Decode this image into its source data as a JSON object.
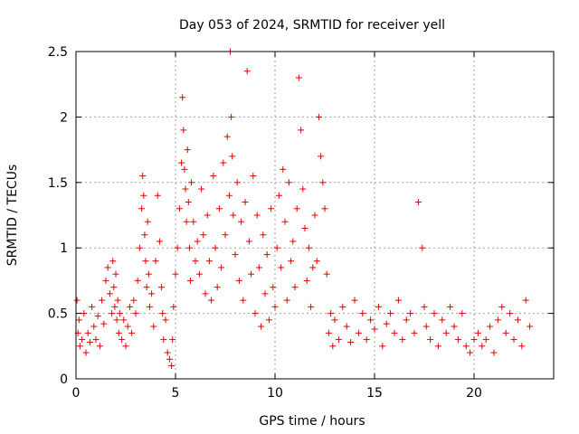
{
  "chart_data": {
    "type": "scatter",
    "title": "Day 053 of 2024, SRMTID for receiver yell",
    "xlabel": "GPS time / hours",
    "ylabel": "SRMTID / TECUs",
    "xlim": [
      0,
      24
    ],
    "ylim": [
      0,
      2.5
    ],
    "x_ticks": [
      0,
      5,
      10,
      15,
      20
    ],
    "x_tick_labels": [
      "0",
      "5",
      "10",
      "15",
      "20"
    ],
    "y_ticks": [
      0,
      0.5,
      1,
      1.5,
      2,
      2.5
    ],
    "y_tick_labels": [
      "0",
      "0.5",
      "1",
      "1.5",
      "2",
      "2.5"
    ],
    "grid": true,
    "marker": "+",
    "marker_color": "#e00000",
    "series": [
      {
        "name": "SRMTID",
        "x": [
          0.05,
          0.1,
          0.15,
          0.2,
          0.3,
          0.4,
          0.5,
          0.6,
          0.7,
          0.8,
          0.9,
          1.0,
          1.1,
          1.2,
          1.3,
          1.4,
          1.5,
          1.6,
          1.7,
          1.8,
          1.85,
          1.9,
          1.95,
          2.0,
          2.05,
          2.1,
          2.15,
          2.2,
          2.3,
          2.4,
          2.5,
          2.6,
          2.7,
          2.8,
          2.9,
          3.0,
          3.1,
          3.2,
          3.3,
          3.35,
          3.4,
          3.45,
          3.5,
          3.55,
          3.6,
          3.65,
          3.7,
          3.8,
          3.9,
          4.0,
          4.1,
          4.2,
          4.3,
          4.35,
          4.4,
          4.5,
          4.6,
          4.7,
          4.8,
          4.85,
          4.9,
          5.0,
          5.1,
          5.2,
          5.3,
          5.35,
          5.4,
          5.45,
          5.5,
          5.55,
          5.6,
          5.65,
          5.7,
          5.75,
          5.8,
          5.9,
          6.0,
          6.1,
          6.2,
          6.3,
          6.4,
          6.5,
          6.6,
          6.7,
          6.8,
          6.9,
          7.0,
          7.1,
          7.2,
          7.3,
          7.4,
          7.5,
          7.6,
          7.7,
          7.75,
          7.8,
          7.85,
          7.9,
          8.0,
          8.1,
          8.2,
          8.3,
          8.4,
          8.5,
          8.6,
          8.7,
          8.8,
          8.9,
          9.0,
          9.1,
          9.2,
          9.3,
          9.4,
          9.5,
          9.6,
          9.7,
          9.8,
          9.9,
          10.0,
          10.1,
          10.2,
          10.3,
          10.4,
          10.5,
          10.6,
          10.7,
          10.8,
          10.9,
          11.0,
          11.1,
          11.2,
          11.3,
          11.4,
          11.5,
          11.6,
          11.7,
          11.8,
          11.9,
          12.0,
          12.1,
          12.2,
          12.3,
          12.4,
          12.5,
          12.6,
          12.7,
          12.8,
          12.9,
          13.0,
          13.2,
          13.4,
          13.6,
          13.8,
          14.0,
          14.2,
          14.4,
          14.6,
          14.8,
          15.0,
          15.2,
          15.4,
          15.6,
          15.8,
          16.0,
          16.2,
          16.4,
          16.6,
          16.8,
          17.0,
          17.2,
          17.4,
          17.5,
          17.6,
          17.8,
          18.0,
          18.2,
          18.4,
          18.6,
          18.8,
          19.0,
          19.2,
          19.4,
          19.6,
          19.8,
          20.0,
          20.2,
          20.4,
          20.6,
          20.8,
          21.0,
          21.2,
          21.4,
          21.6,
          21.8,
          22.0,
          22.2,
          22.4,
          22.6,
          22.8
        ],
        "y": [
          0.6,
          0.35,
          0.45,
          0.25,
          0.3,
          0.5,
          0.2,
          0.35,
          0.28,
          0.55,
          0.4,
          0.3,
          0.48,
          0.25,
          0.6,
          0.42,
          0.75,
          0.85,
          0.65,
          0.5,
          0.9,
          0.7,
          0.55,
          0.8,
          0.45,
          0.6,
          0.35,
          0.5,
          0.3,
          0.45,
          0.25,
          0.4,
          0.55,
          0.35,
          0.6,
          0.5,
          0.75,
          1.0,
          1.3,
          1.55,
          1.4,
          1.1,
          0.9,
          0.7,
          1.2,
          0.8,
          0.55,
          0.65,
          0.4,
          0.9,
          1.4,
          1.05,
          0.7,
          0.5,
          0.3,
          0.45,
          0.2,
          0.15,
          0.1,
          0.3,
          0.55,
          0.8,
          1.0,
          1.3,
          1.65,
          2.15,
          1.9,
          1.6,
          1.45,
          1.2,
          1.75,
          1.35,
          1.0,
          0.75,
          1.5,
          1.2,
          0.9,
          1.05,
          0.8,
          1.45,
          1.1,
          0.65,
          1.25,
          0.9,
          0.6,
          1.55,
          1.0,
          0.7,
          1.3,
          0.85,
          1.65,
          1.1,
          1.85,
          1.4,
          2.5,
          2.0,
          1.7,
          1.25,
          0.95,
          1.5,
          0.75,
          1.2,
          0.6,
          1.35,
          2.35,
          1.05,
          0.8,
          1.55,
          0.5,
          1.25,
          0.85,
          0.4,
          1.1,
          0.65,
          0.95,
          0.45,
          1.3,
          0.7,
          0.55,
          1.0,
          1.4,
          0.85,
          1.6,
          1.2,
          0.6,
          1.5,
          0.9,
          1.05,
          0.7,
          1.3,
          2.3,
          1.9,
          1.45,
          1.15,
          0.75,
          1.0,
          0.55,
          0.85,
          1.25,
          0.9,
          2.0,
          1.7,
          1.5,
          1.3,
          0.8,
          0.35,
          0.5,
          0.25,
          0.45,
          0.3,
          0.55,
          0.4,
          0.28,
          0.6,
          0.35,
          0.5,
          0.3,
          0.45,
          0.38,
          0.55,
          0.25,
          0.42,
          0.5,
          0.35,
          0.6,
          0.3,
          0.45,
          0.5,
          0.35,
          1.35,
          1.0,
          0.55,
          0.4,
          0.3,
          0.5,
          0.25,
          0.45,
          0.35,
          0.55,
          0.4,
          0.3,
          0.5,
          0.25,
          0.2,
          0.3,
          0.35,
          0.25,
          0.3,
          0.4,
          0.2,
          0.45,
          0.55,
          0.35,
          0.5,
          0.3,
          0.45,
          0.25,
          0.6,
          0.4
        ]
      }
    ]
  }
}
